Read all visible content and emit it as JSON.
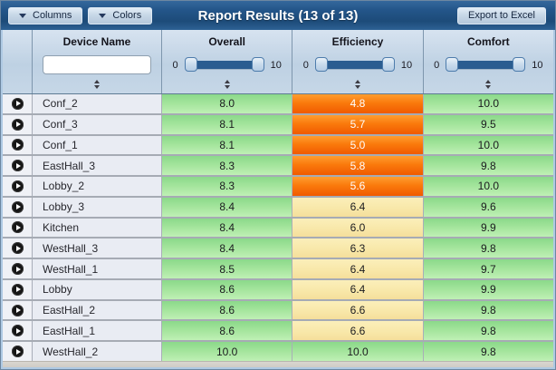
{
  "toolbar": {
    "columns_label": "Columns",
    "colors_label": "Colors",
    "title": "Report Results (13 of 13)",
    "export_label": "Export to Excel"
  },
  "colors": {
    "header_bar_blue": "#1d4b79",
    "header_panel_blue": "#c3d5e6",
    "slider_fill_blue": "#2b5d90",
    "cell_green": "#8bd98a",
    "cell_yellow": "#f8e7a8",
    "cell_orange": "#f8690a",
    "name_cell_gray": "#e9ecf3",
    "row_separator": "#a6abb4"
  },
  "table": {
    "columns": [
      {
        "key": "name",
        "label": "Device Name",
        "filter": "text",
        "filter_value": ""
      },
      {
        "key": "overall",
        "label": "Overall",
        "filter": "slider",
        "min": "0",
        "max": "10"
      },
      {
        "key": "efficiency",
        "label": "Efficiency",
        "filter": "slider",
        "min": "0",
        "max": "10"
      },
      {
        "key": "comfort",
        "label": "Comfort",
        "filter": "slider",
        "min": "0",
        "max": "10"
      }
    ],
    "rows": [
      {
        "name": "Conf_2",
        "overall": {
          "v": "8.0",
          "level": "green"
        },
        "efficiency": {
          "v": "4.8",
          "level": "orange"
        },
        "comfort": {
          "v": "10.0",
          "level": "green"
        }
      },
      {
        "name": "Conf_3",
        "overall": {
          "v": "8.1",
          "level": "green"
        },
        "efficiency": {
          "v": "5.7",
          "level": "orange"
        },
        "comfort": {
          "v": "9.5",
          "level": "green"
        }
      },
      {
        "name": "Conf_1",
        "overall": {
          "v": "8.1",
          "level": "green"
        },
        "efficiency": {
          "v": "5.0",
          "level": "orange"
        },
        "comfort": {
          "v": "10.0",
          "level": "green"
        }
      },
      {
        "name": "EastHall_3",
        "overall": {
          "v": "8.3",
          "level": "green"
        },
        "efficiency": {
          "v": "5.8",
          "level": "orange"
        },
        "comfort": {
          "v": "9.8",
          "level": "green"
        }
      },
      {
        "name": "Lobby_2",
        "overall": {
          "v": "8.3",
          "level": "green"
        },
        "efficiency": {
          "v": "5.6",
          "level": "orange"
        },
        "comfort": {
          "v": "10.0",
          "level": "green"
        }
      },
      {
        "name": "Lobby_3",
        "overall": {
          "v": "8.4",
          "level": "green"
        },
        "efficiency": {
          "v": "6.4",
          "level": "yellow"
        },
        "comfort": {
          "v": "9.6",
          "level": "green"
        }
      },
      {
        "name": "Kitchen",
        "overall": {
          "v": "8.4",
          "level": "green"
        },
        "efficiency": {
          "v": "6.0",
          "level": "yellow"
        },
        "comfort": {
          "v": "9.9",
          "level": "green"
        }
      },
      {
        "name": "WestHall_3",
        "overall": {
          "v": "8.4",
          "level": "green"
        },
        "efficiency": {
          "v": "6.3",
          "level": "yellow"
        },
        "comfort": {
          "v": "9.8",
          "level": "green"
        }
      },
      {
        "name": "WestHall_1",
        "overall": {
          "v": "8.5",
          "level": "green"
        },
        "efficiency": {
          "v": "6.4",
          "level": "yellow"
        },
        "comfort": {
          "v": "9.7",
          "level": "green"
        }
      },
      {
        "name": "Lobby",
        "overall": {
          "v": "8.6",
          "level": "green"
        },
        "efficiency": {
          "v": "6.4",
          "level": "yellow"
        },
        "comfort": {
          "v": "9.9",
          "level": "green"
        }
      },
      {
        "name": "EastHall_2",
        "overall": {
          "v": "8.6",
          "level": "green"
        },
        "efficiency": {
          "v": "6.6",
          "level": "yellow"
        },
        "comfort": {
          "v": "9.8",
          "level": "green"
        }
      },
      {
        "name": "EastHall_1",
        "overall": {
          "v": "8.6",
          "level": "green"
        },
        "efficiency": {
          "v": "6.6",
          "level": "yellow"
        },
        "comfort": {
          "v": "9.8",
          "level": "green"
        }
      },
      {
        "name": "WestHall_2",
        "overall": {
          "v": "10.0",
          "level": "green"
        },
        "efficiency": {
          "v": "10.0",
          "level": "green"
        },
        "comfort": {
          "v": "9.8",
          "level": "green"
        }
      }
    ]
  }
}
